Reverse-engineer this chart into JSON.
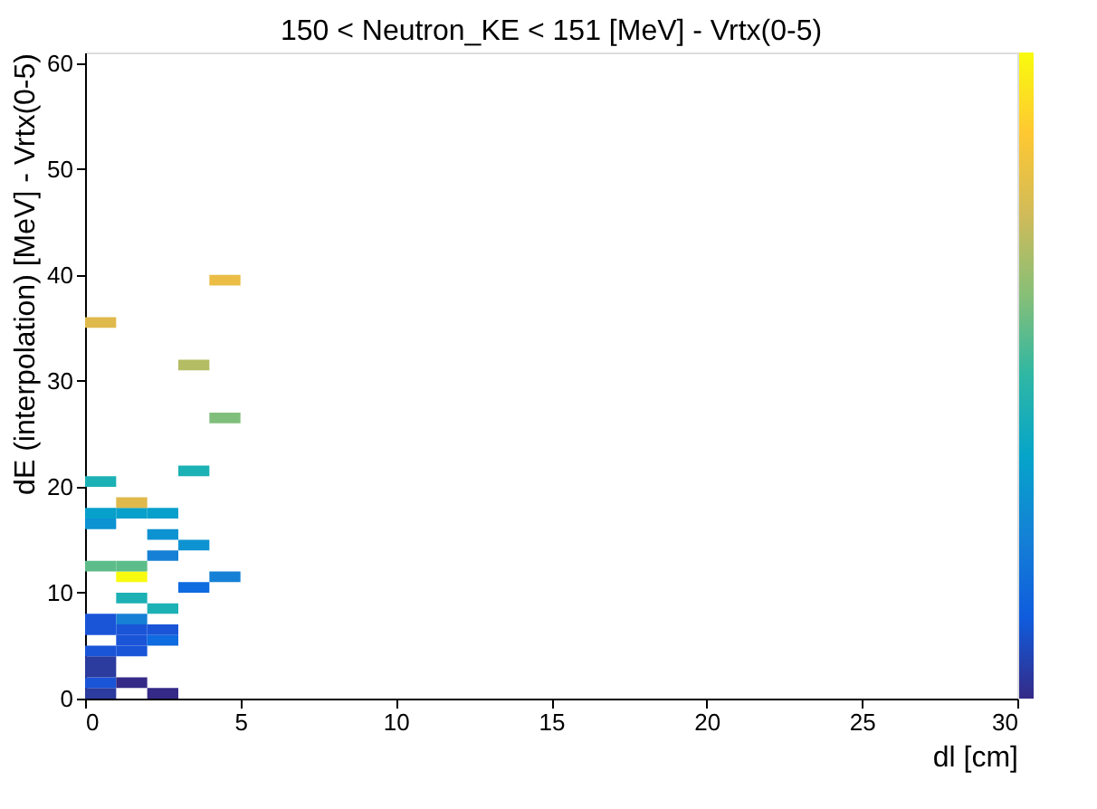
{
  "chart_data": {
    "type": "scatter",
    "title": "150 < Neutron_KE < 151 [MeV] - Vrtx(0-5)",
    "xlabel": "dl [cm]",
    "ylabel": "dE (interpolation) [MeV] - Vrtx(0-5)",
    "marker": "square",
    "grid": false,
    "xlim": [
      0,
      30
    ],
    "xticks": [
      0,
      5,
      10,
      15,
      20,
      25,
      30
    ],
    "ylim": [
      0,
      61
    ],
    "yticks": [
      0,
      10,
      20,
      30,
      40,
      50,
      60
    ],
    "x": [
      0.5,
      2.5,
      0.5,
      1.5,
      0.5,
      0.5,
      0.5,
      1.5,
      1.5,
      2.5,
      0.5,
      1.5,
      2.5,
      0.5,
      1.5,
      2.5,
      1.5,
      3.5,
      4.5,
      1.5,
      0.5,
      1.5,
      2.5,
      3.5,
      2.5,
      0.5,
      0.5,
      1.5,
      2.5,
      1.5,
      0.5,
      3.5,
      4.5,
      3.5,
      0.5,
      4.5
    ],
    "values": [
      0.5,
      0.5,
      1.5,
      1.5,
      2.5,
      3.5,
      4.5,
      4.5,
      5.5,
      5.5,
      6.5,
      6.5,
      6.5,
      7.5,
      7.5,
      8.5,
      9.5,
      10.5,
      11.5,
      11.5,
      12.5,
      12.5,
      13.5,
      14.5,
      15.5,
      16.5,
      17.5,
      17.5,
      17.5,
      18.5,
      20.5,
      21.5,
      26.5,
      31.5,
      35.5,
      39.5
    ],
    "colors": [
      "#2c3b9e",
      "#352a87",
      "#1a55d8",
      "#352a87",
      "#2c3b9e",
      "#2c3b9e",
      "#1a55d8",
      "#1a55d8",
      "#1a55d8",
      "#0e6be0",
      "#1a55d8",
      "#1a55d8",
      "#1a55d8",
      "#1a55d8",
      "#1580d5",
      "#1cb1b4",
      "#1cb1b4",
      "#0e6be0",
      "#1580d5",
      "#f9fb0e",
      "#5dbd8a",
      "#5dbd8a",
      "#1580d5",
      "#0d92d2",
      "#0d92d2",
      "#0d92d2",
      "#07a0cb",
      "#07a0cb",
      "#07a0cb",
      "#e0b94c",
      "#1cb1b4",
      "#1cb1b4",
      "#7fbf7b",
      "#b4bd63",
      "#e0b94c",
      "#ebbd45"
    ]
  }
}
